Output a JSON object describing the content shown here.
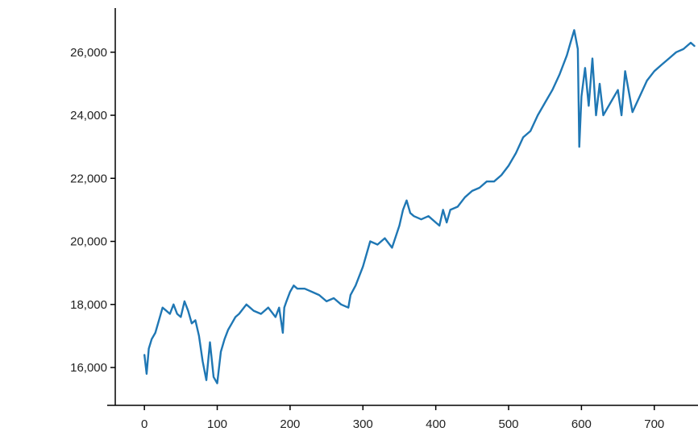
{
  "chart_data": {
    "type": "line",
    "title": "",
    "xlabel": "",
    "ylabel": "",
    "xlim": [
      -40,
      760
    ],
    "ylim": [
      14800,
      27400
    ],
    "x_ticks": [
      0,
      100,
      200,
      300,
      400,
      500,
      600,
      700
    ],
    "x_tick_labels": [
      "0",
      "100",
      "200",
      "300",
      "400",
      "500",
      "600",
      "700"
    ],
    "y_ticks": [
      16000,
      18000,
      20000,
      22000,
      24000,
      26000
    ],
    "y_tick_labels": [
      "16,000",
      "18,000",
      "20,000",
      "22,000",
      "24,000",
      "26,000"
    ],
    "grid": false,
    "legend": "none",
    "series": [
      {
        "color": "#1f77b4",
        "x": [
          0,
          3,
          6,
          10,
          15,
          20,
          25,
          30,
          35,
          40,
          45,
          50,
          55,
          60,
          65,
          70,
          75,
          80,
          85,
          90,
          95,
          100,
          105,
          110,
          115,
          120,
          125,
          130,
          140,
          150,
          160,
          170,
          180,
          185,
          190,
          192,
          195,
          200,
          205,
          210,
          220,
          230,
          240,
          250,
          260,
          270,
          280,
          283,
          290,
          300,
          310,
          320,
          330,
          340,
          350,
          355,
          360,
          365,
          370,
          380,
          390,
          400,
          405,
          410,
          415,
          420,
          430,
          440,
          450,
          460,
          470,
          480,
          490,
          500,
          510,
          520,
          530,
          540,
          550,
          560,
          570,
          580,
          585,
          590,
          595,
          597,
          600,
          605,
          610,
          615,
          620,
          625,
          630,
          640,
          650,
          655,
          660,
          670,
          680,
          690,
          700,
          710,
          720,
          730,
          740,
          750,
          755
        ],
        "y": [
          16400,
          15800,
          16600,
          16900,
          17100,
          17500,
          17900,
          17800,
          17700,
          18000,
          17700,
          17600,
          18100,
          17800,
          17400,
          17500,
          17000,
          16200,
          15600,
          16800,
          15700,
          15500,
          16500,
          16900,
          17200,
          17400,
          17600,
          17700,
          18000,
          17800,
          17700,
          17900,
          17600,
          17900,
          17100,
          17900,
          18100,
          18400,
          18600,
          18500,
          18500,
          18400,
          18300,
          18100,
          18200,
          18000,
          17900,
          18300,
          18600,
          19200,
          20000,
          19900,
          20100,
          19800,
          20500,
          21000,
          21300,
          20900,
          20800,
          20700,
          20800,
          20600,
          20500,
          21000,
          20600,
          21000,
          21100,
          21400,
          21600,
          21700,
          21900,
          21900,
          22100,
          22400,
          22800,
          23300,
          23500,
          24000,
          24400,
          24800,
          25300,
          25900,
          26300,
          26700,
          26100,
          23000,
          24600,
          25500,
          24300,
          25800,
          24000,
          25000,
          24000,
          24400,
          24800,
          24000,
          25400,
          24100,
          24600,
          25100,
          25400,
          25600,
          25800,
          26000,
          26100,
          26300,
          26200
        ]
      }
    ]
  }
}
